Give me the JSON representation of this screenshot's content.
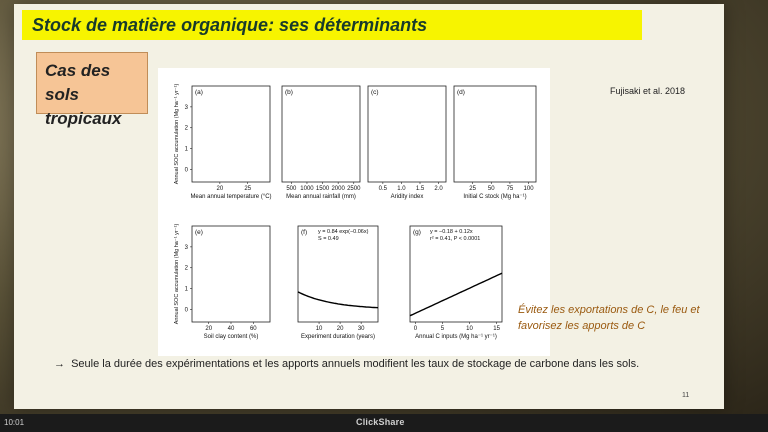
{
  "slide": {
    "title": "Stock de matière organique: ses déterminants",
    "subtitle": "Cas des sols tropicaux",
    "citation": "Fujisaki et al. 2018",
    "note": "Évitez les exportations de C, le feu et favorisez les apports de C",
    "conclusion_arrow": "→",
    "conclusion": "Seule la durée des expérimentations et les apports annuels modifient les taux de stockage de carbone dans les sols.",
    "page_number": "11"
  },
  "status_bar": {
    "clock": "10:01",
    "brand": "ClickShare"
  },
  "colors": {
    "title_bar": "#f7f400",
    "subtitle_box": "#f6c596",
    "note_text": "#9a5a10",
    "title_text": "#183a2b"
  },
  "chart_data": [
    {
      "type": "scatter",
      "panel": "(a)",
      "xlabel": "Mean annual temperature (°C)",
      "ylabel": "Annual SOC accumulation (Mg ha⁻¹ yr⁻¹)",
      "xticks": [
        "20",
        "25"
      ],
      "xlim": [
        15,
        29
      ],
      "yticks": [
        "0",
        "1",
        "2",
        "3"
      ],
      "ylim": [
        -0.6,
        4
      ],
      "points": []
    },
    {
      "type": "scatter",
      "panel": "(b)",
      "xlabel": "Mean annual rainfall (mm)",
      "xticks": [
        "500",
        "1000",
        "1500",
        "2000",
        "2500"
      ],
      "xlim": [
        200,
        2700
      ],
      "yticks": [],
      "ylim": [
        -0.6,
        4
      ],
      "points": []
    },
    {
      "type": "scatter",
      "panel": "(c)",
      "xlabel": "Aridity index",
      "xticks": [
        "0.5",
        "1.0",
        "1.5",
        "2.0"
      ],
      "xlim": [
        0.1,
        2.2
      ],
      "yticks": [],
      "ylim": [
        -0.6,
        4
      ],
      "points": []
    },
    {
      "type": "scatter",
      "panel": "(d)",
      "xlabel": "Initial C stock (Mg ha⁻¹)",
      "xticks": [
        "25",
        "50",
        "75",
        "100"
      ],
      "xlim": [
        0,
        110
      ],
      "yticks": [],
      "ylim": [
        -0.6,
        4
      ],
      "points": []
    },
    {
      "type": "scatter",
      "panel": "(e)",
      "xlabel": "Soil clay content (%)",
      "ylabel": "Annual SOC accumulation (Mg ha⁻¹ yr⁻¹)",
      "xticks": [
        "20",
        "40",
        "60"
      ],
      "xlim": [
        5,
        75
      ],
      "yticks": [
        "0",
        "1",
        "2",
        "3"
      ],
      "ylim": [
        -0.6,
        4
      ],
      "points": []
    },
    {
      "type": "scatter",
      "panel": "(f)",
      "xlabel": "Experiment duration (years)",
      "xticks": [
        "10",
        "20",
        "30"
      ],
      "xlim": [
        0,
        38
      ],
      "yticks": [],
      "ylim": [
        -0.6,
        4
      ],
      "points": [],
      "annotation": [
        "y = 0.84 exp(−0.06x)",
        "S = 0.49"
      ],
      "fit": {
        "kind": "exp",
        "a": 0.84,
        "b": -0.06
      }
    },
    {
      "type": "scatter",
      "panel": "(g)",
      "xlabel": "Annual C inputs (Mg ha⁻¹ yr⁻¹)",
      "xticks": [
        "0",
        "5",
        "10",
        "15"
      ],
      "xlim": [
        -1,
        16
      ],
      "yticks": [],
      "ylim": [
        -0.6,
        4
      ],
      "points": [],
      "annotation": [
        "y = −0.18 + 0.12x",
        "r² = 0.41, P < 0.0001"
      ],
      "fit": {
        "kind": "linear",
        "a": -0.18,
        "b": 0.12
      }
    }
  ]
}
